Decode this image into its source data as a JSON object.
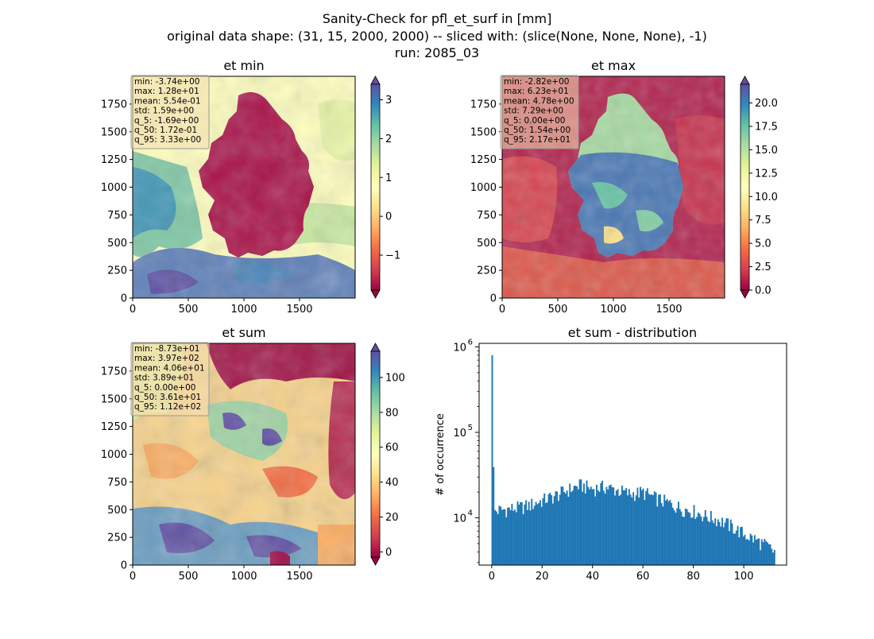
{
  "suptitle": {
    "line1": "Sanity-Check for pfl_et_surf in [mm]",
    "line2": "original data shape: (31, 15, 2000, 2000) -- sliced with: (slice(None, None, None), -1)",
    "line3": "run: 2085_03"
  },
  "colors": {
    "histogram_bar": "#1f77b4",
    "spectral": [
      "#9e0142",
      "#d53e4f",
      "#f46d43",
      "#fdae61",
      "#fee08b",
      "#ffffbf",
      "#e6f598",
      "#abdda4",
      "#66c2a5",
      "#3288bd",
      "#5e4fa2"
    ],
    "stats_box_bg": "#f5deb3"
  },
  "chart_data": [
    {
      "type": "heatmap",
      "title": "et min",
      "xticks": [
        0,
        500,
        1000,
        1500
      ],
      "yticks": [
        0,
        250,
        500,
        750,
        1000,
        1250,
        1500,
        1750
      ],
      "xlim": [
        0,
        2000
      ],
      "ylim": [
        0,
        2000
      ],
      "colormap": "Spectral",
      "colorbar": {
        "range": [
          -1.9,
          3.4
        ],
        "ticks": [
          -1,
          0,
          1,
          2,
          3
        ],
        "tick_labels": [
          "−1",
          "0",
          "1",
          "2",
          "3"
        ],
        "extend": "both"
      },
      "stats": [
        "min: -3.74e+00",
        "max: 1.28e+01",
        "mean: 5.54e-01",
        "std: 1.59e+00",
        "q_5: -1.69e+00",
        "q_50: 1.72e-01",
        "q_95: 3.33e+00"
      ]
    },
    {
      "type": "heatmap",
      "title": "et max",
      "xticks": [
        0,
        500,
        1000,
        1500
      ],
      "yticks": [
        0,
        250,
        500,
        750,
        1000,
        1250,
        1500,
        1750
      ],
      "xlim": [
        0,
        2000
      ],
      "ylim": [
        0,
        2000
      ],
      "colormap": "Spectral",
      "colorbar": {
        "range": [
          0,
          22
        ],
        "ticks": [
          0,
          2.5,
          5,
          7.5,
          10,
          12.5,
          15,
          17.5,
          20
        ],
        "tick_labels": [
          "0.0",
          "2.5",
          "5.0",
          "7.5",
          "10.0",
          "12.5",
          "15.0",
          "17.5",
          "20.0"
        ],
        "extend": "both"
      },
      "stats": [
        "min: -2.82e+00",
        "max: 6.23e+01",
        "mean: 4.78e+00",
        "std: 7.29e+00",
        "q_5: 0.00e+00",
        "q_50: 1.54e+00",
        "q_95: 2.17e+01"
      ]
    },
    {
      "type": "heatmap",
      "title": "et sum",
      "xticks": [
        0,
        500,
        1000,
        1500
      ],
      "yticks": [
        0,
        250,
        500,
        750,
        1000,
        1250,
        1500,
        1750
      ],
      "xlim": [
        0,
        2000
      ],
      "ylim": [
        0,
        2000
      ],
      "colormap": "Spectral",
      "colorbar": {
        "range": [
          -3,
          115
        ],
        "ticks": [
          0,
          20,
          40,
          60,
          80,
          100
        ],
        "tick_labels": [
          "0",
          "20",
          "40",
          "60",
          "80",
          "100"
        ],
        "extend": "both"
      },
      "stats": [
        "min: -8.73e+01",
        "max: 3.97e+02",
        "mean: 4.06e+01",
        "std: 3.89e+01",
        "q_5: 0.00e+00",
        "q_50: 3.61e+01",
        "q_95: 1.12e+02"
      ]
    },
    {
      "type": "bar",
      "title": "et sum - distribution",
      "ylabel": "# of occurrence",
      "yscale": "log",
      "xlim": [
        -5,
        117
      ],
      "ylim": [
        2800,
        1100000
      ],
      "xticks": [
        0,
        20,
        40,
        60,
        80,
        100
      ],
      "yticks": [
        10000,
        100000,
        1000000
      ],
      "ytick_labels": [
        "10",
        "10",
        "10"
      ],
      "ytick_exponents": [
        "4",
        "5",
        "6"
      ],
      "bin_start": -0.1,
      "bin_width": 0.56,
      "notes": "histogram of et sum values between 0 and ~112",
      "values_samples": [
        [
          0,
          800000
        ],
        [
          1,
          12000
        ],
        [
          5,
          12500
        ],
        [
          10,
          13000
        ],
        [
          15,
          14000
        ],
        [
          20,
          16000
        ],
        [
          25,
          18000
        ],
        [
          30,
          21000
        ],
        [
          35,
          24000
        ],
        [
          40,
          22000
        ],
        [
          45,
          23000
        ],
        [
          50,
          21000
        ],
        [
          55,
          19000
        ],
        [
          60,
          20000
        ],
        [
          65,
          17000
        ],
        [
          70,
          15000
        ],
        [
          75,
          13000
        ],
        [
          80,
          12000
        ],
        [
          85,
          10500
        ],
        [
          90,
          9500
        ],
        [
          95,
          8000
        ],
        [
          100,
          6500
        ],
        [
          105,
          5500
        ],
        [
          110,
          4500
        ],
        [
          112,
          4000
        ]
      ]
    }
  ]
}
